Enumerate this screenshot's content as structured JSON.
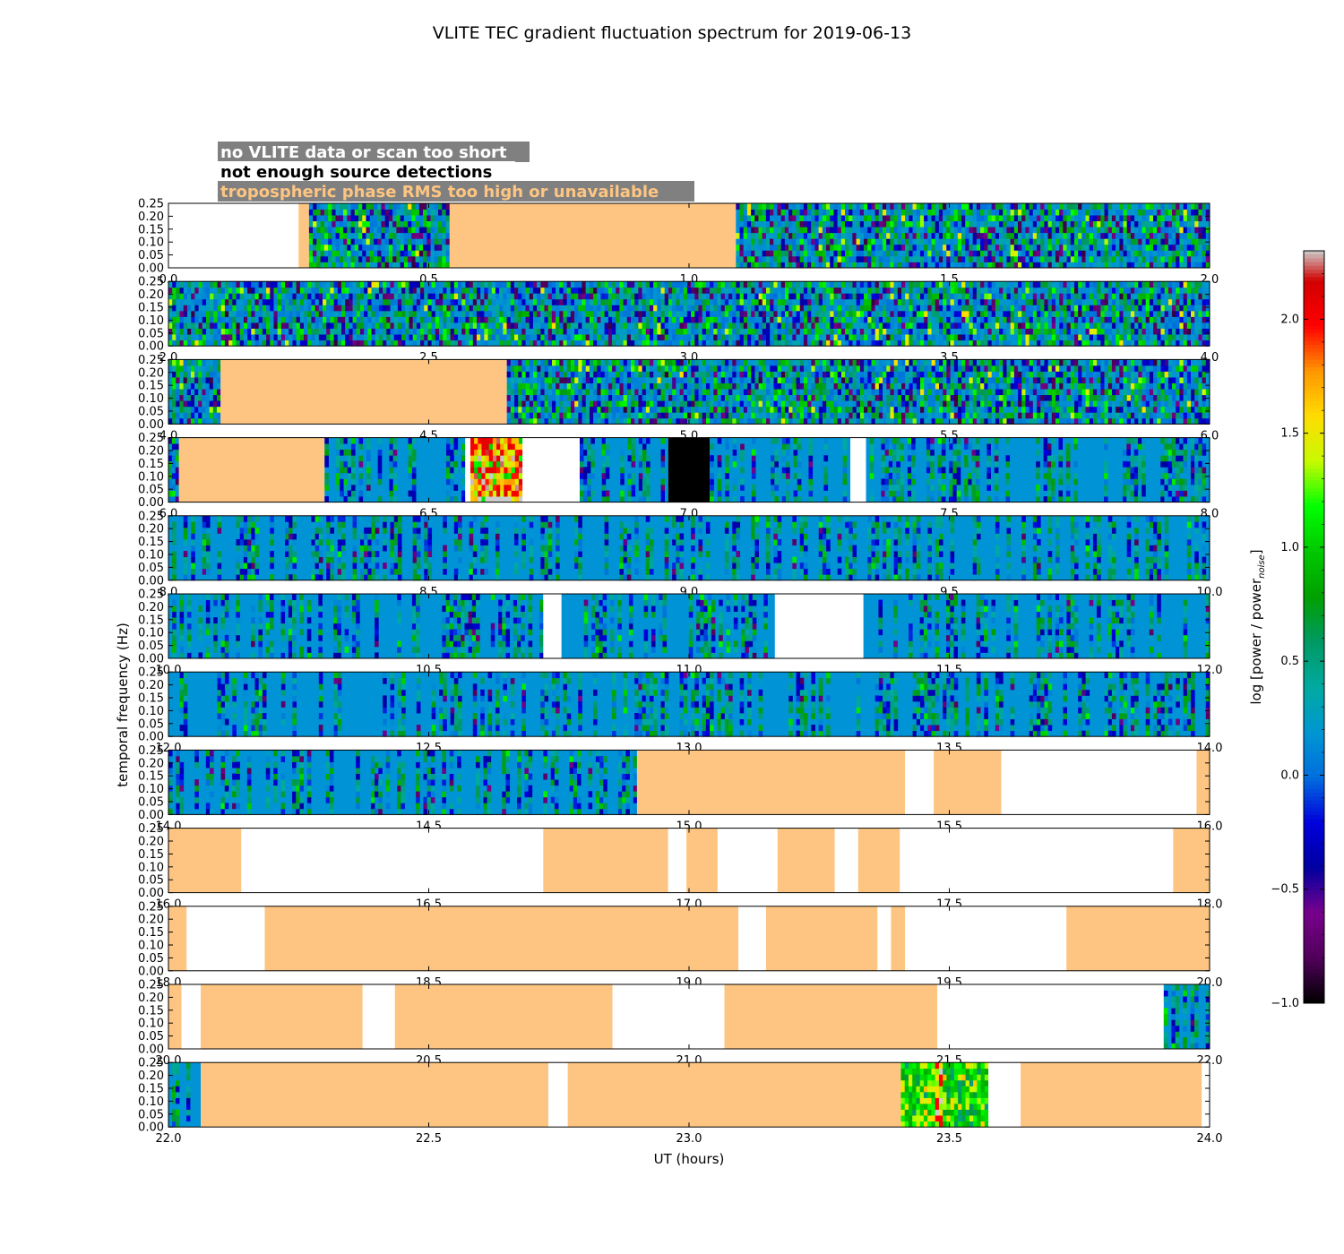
{
  "chart_data": {
    "type": "heatmap",
    "title": "VLITE TEC gradient fluctuation spectrum for 2019-06-13",
    "xlabel": "UT (hours)",
    "ylabel": "temporal frequency (Hz)",
    "ylim": [
      0,
      0.25
    ],
    "y_ticks": [
      "0.00",
      "0.05",
      "0.10",
      "0.15",
      "0.20",
      "0.25"
    ],
    "legend": [
      {
        "text": "no VLITE data or scan too short",
        "color": "#ffffff",
        "meaning": "white"
      },
      {
        "text": "not enough source detections",
        "color": "#000000",
        "meaning": "black"
      },
      {
        "text": "tropospheric phase RMS too high or unavailable",
        "color": "#fdc581",
        "meaning": "orange"
      }
    ],
    "colorbar": {
      "label": "log [power / power",
      "label_sub": "noise",
      "label_end": "]",
      "range": [
        -1.0,
        2.3
      ],
      "ticks": [
        "−1.0",
        "−0.5",
        "0.0",
        "0.5",
        "1.0",
        "1.5",
        "2.0"
      ],
      "tick_values": [
        -1.0,
        -0.5,
        0.0,
        0.5,
        1.0,
        1.5,
        2.0
      ],
      "colormap": "nipy_spectral"
    },
    "panels": [
      {
        "start": 0,
        "end": 2,
        "ticks": [
          "0.0",
          "0.5",
          "1.0",
          "1.5",
          "2.0"
        ],
        "segments": [
          [
            "white",
            0,
            0.25
          ],
          [
            "orange",
            0.25,
            0.27
          ],
          [
            "noise",
            0.27,
            0.54
          ],
          [
            "orange",
            0.54,
            1.09
          ],
          [
            "noise",
            1.09,
            2.0
          ]
        ]
      },
      {
        "start": 2,
        "end": 4,
        "ticks": [
          "2.0",
          "2.5",
          "3.0",
          "3.5",
          "4.0"
        ],
        "segments": [
          [
            "noise",
            2.0,
            4.0
          ]
        ]
      },
      {
        "start": 4,
        "end": 6,
        "ticks": [
          "4.0",
          "4.5",
          "5.0",
          "5.5",
          "6.0"
        ],
        "segments": [
          [
            "noise",
            4.0,
            4.1
          ],
          [
            "orange",
            4.1,
            4.65
          ],
          [
            "noise",
            4.65,
            6.0
          ]
        ]
      },
      {
        "start": 6,
        "end": 8,
        "ticks": [
          "6.0",
          "6.5",
          "7.0",
          "7.5",
          "8.0"
        ],
        "segments": [
          [
            "noise",
            6.0,
            6.02
          ],
          [
            "orange",
            6.02,
            6.3
          ],
          [
            "sparse",
            6.3,
            6.57
          ],
          [
            "white",
            6.57,
            6.58
          ],
          [
            "hot",
            6.58,
            6.68
          ],
          [
            "white",
            6.68,
            6.79
          ],
          [
            "sparse",
            6.79,
            6.96
          ],
          [
            "black",
            6.96,
            7.04
          ],
          [
            "sparse",
            7.04,
            7.31
          ],
          [
            "white",
            7.31,
            7.34
          ],
          [
            "sparse",
            7.34,
            8.0
          ]
        ]
      },
      {
        "start": 8,
        "end": 10,
        "ticks": [
          "8.0",
          "8.5",
          "9.0",
          "9.5",
          "10.0"
        ],
        "segments": [
          [
            "sparse",
            8.0,
            10.0
          ]
        ]
      },
      {
        "start": 10,
        "end": 12,
        "ticks": [
          "10.0",
          "10.5",
          "11.0",
          "11.5",
          "12.0"
        ],
        "segments": [
          [
            "sparse",
            10.0,
            10.72
          ],
          [
            "white",
            10.72,
            10.755
          ],
          [
            "sparse",
            10.755,
            11.165
          ],
          [
            "white",
            11.165,
            11.335
          ],
          [
            "sparse",
            11.335,
            12.0
          ]
        ]
      },
      {
        "start": 12,
        "end": 14,
        "ticks": [
          "12.0",
          "12.5",
          "13.0",
          "13.5",
          "14.0"
        ],
        "segments": [
          [
            "sparse",
            12.0,
            14.0
          ]
        ]
      },
      {
        "start": 14,
        "end": 16,
        "ticks": [
          "14.0",
          "14.5",
          "15.0",
          "15.5",
          "16.0"
        ],
        "segments": [
          [
            "sparse",
            14.0,
            14.9
          ],
          [
            "orange",
            14.9,
            15.415
          ],
          [
            "white",
            15.415,
            15.47
          ],
          [
            "orange",
            15.47,
            15.6
          ],
          [
            "white",
            15.6,
            15.975
          ],
          [
            "orange",
            15.975,
            16.0
          ]
        ]
      },
      {
        "start": 16,
        "end": 18,
        "ticks": [
          "16.0",
          "16.5",
          "17.0",
          "17.5",
          "18.0"
        ],
        "segments": [
          [
            "orange",
            16.0,
            16.14
          ],
          [
            "white",
            16.14,
            16.72
          ],
          [
            "orange",
            16.72,
            16.96
          ],
          [
            "white",
            16.96,
            16.995
          ],
          [
            "orange",
            16.995,
            17.055
          ],
          [
            "white",
            17.055,
            17.17
          ],
          [
            "orange",
            17.17,
            17.28
          ],
          [
            "white",
            17.28,
            17.325
          ],
          [
            "orange",
            17.325,
            17.405
          ],
          [
            "white",
            17.405,
            17.93
          ],
          [
            "orange",
            17.93,
            18.0
          ]
        ]
      },
      {
        "start": 18,
        "end": 20,
        "ticks": [
          "18.0",
          "18.5",
          "19.0",
          "19.5",
          "20.0"
        ],
        "segments": [
          [
            "orange",
            18.0,
            18.035
          ],
          [
            "white",
            18.035,
            18.185
          ],
          [
            "orange",
            18.185,
            19.095
          ],
          [
            "white",
            19.095,
            19.148
          ],
          [
            "orange",
            19.148,
            19.362
          ],
          [
            "white",
            19.362,
            19.388
          ],
          [
            "orange",
            19.388,
            19.415
          ],
          [
            "white",
            19.415,
            19.725
          ],
          [
            "orange",
            19.725,
            20.0
          ]
        ]
      },
      {
        "start": 20,
        "end": 22,
        "ticks": [
          "20.0",
          "20.5",
          "21.0",
          "21.5",
          "22.0"
        ],
        "segments": [
          [
            "orange",
            20.0,
            20.025
          ],
          [
            "white",
            20.025,
            20.062
          ],
          [
            "orange",
            20.062,
            20.373
          ],
          [
            "white",
            20.373,
            20.435
          ],
          [
            "orange",
            20.435,
            20.853
          ],
          [
            "white",
            20.853,
            21.068
          ],
          [
            "orange",
            21.068,
            21.477
          ],
          [
            "white",
            21.477,
            21.912
          ],
          [
            "sparse",
            21.912,
            22.0
          ]
        ]
      },
      {
        "start": 22,
        "end": 24,
        "ticks": [
          "22.0",
          "22.5",
          "23.0",
          "23.5",
          "24.0"
        ],
        "segments": [
          [
            "sparse",
            22.0,
            22.062
          ],
          [
            "orange",
            22.062,
            22.73
          ],
          [
            "white",
            22.73,
            22.767
          ],
          [
            "orange",
            22.767,
            23.407
          ],
          [
            "greenish",
            23.407,
            23.575
          ],
          [
            "white",
            23.575,
            23.637
          ],
          [
            "orange",
            23.637,
            23.985
          ],
          [
            "white",
            23.985,
            24.0
          ]
        ]
      }
    ]
  }
}
